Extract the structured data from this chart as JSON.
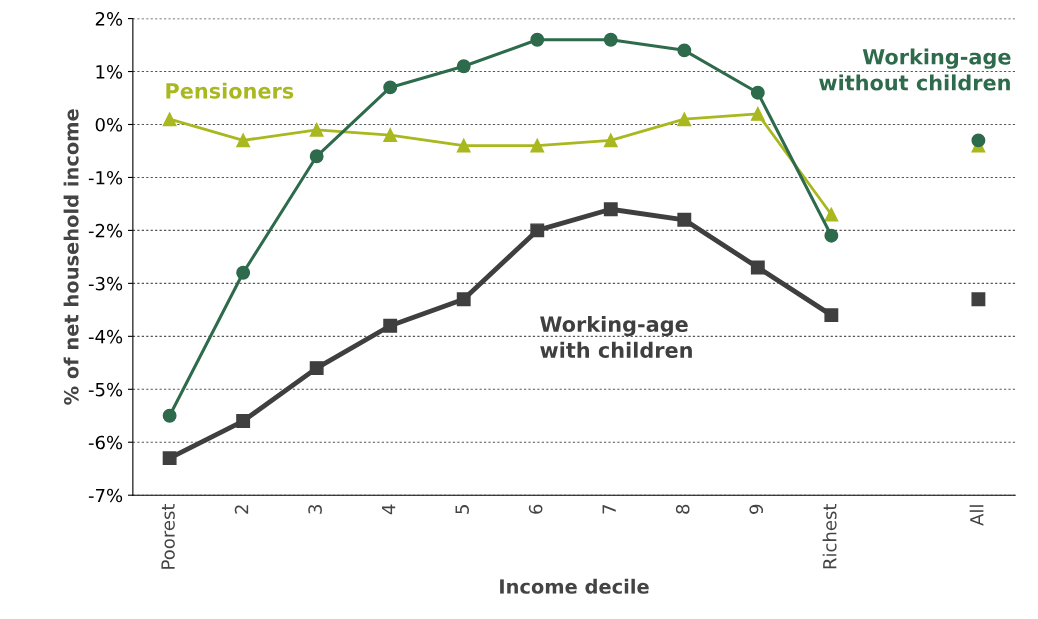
{
  "chart_data": {
    "type": "line",
    "xlabel": "Income decile",
    "ylabel": "% of net household income",
    "categories": [
      "Poorest",
      "2",
      "3",
      "4",
      "5",
      "6",
      "7",
      "8",
      "9",
      "Richest",
      null,
      "All"
    ],
    "series": [
      {
        "name": "Pensioners",
        "color": "#a9b81f",
        "marker": "triangle",
        "values": [
          0.1,
          -0.3,
          -0.1,
          -0.2,
          -0.4,
          -0.4,
          -0.3,
          0.1,
          0.2,
          -1.7,
          null,
          -0.4
        ]
      },
      {
        "name": "Working-age\nwithout children",
        "color": "#2e6a4c",
        "marker": "circle",
        "values": [
          -5.5,
          -2.8,
          -0.6,
          0.7,
          1.1,
          1.6,
          1.6,
          1.4,
          0.6,
          -2.1,
          null,
          -0.3
        ]
      },
      {
        "name": "Working-age\nwith children",
        "color": "#3f3f3f",
        "marker": "square",
        "values": [
          -6.3,
          -5.6,
          -4.6,
          -3.8,
          -3.3,
          -2.0,
          -1.6,
          -1.8,
          -2.7,
          -3.6,
          null,
          -3.3
        ]
      }
    ],
    "ylim": [
      -7,
      2
    ],
    "yticks": [
      {
        "value": -7,
        "label": "-7%"
      },
      {
        "value": -6,
        "label": "-6%"
      },
      {
        "value": -5,
        "label": "-5%"
      },
      {
        "value": -4,
        "label": "-4%"
      },
      {
        "value": -3,
        "label": "-3%"
      },
      {
        "value": -2,
        "label": "-2%"
      },
      {
        "value": -1,
        "label": "-1%"
      },
      {
        "value": 0,
        "label": "0%"
      },
      {
        "value": 1,
        "label": "1%"
      },
      {
        "value": 2,
        "label": "2%"
      }
    ],
    "grid": "y",
    "legend": false
  }
}
